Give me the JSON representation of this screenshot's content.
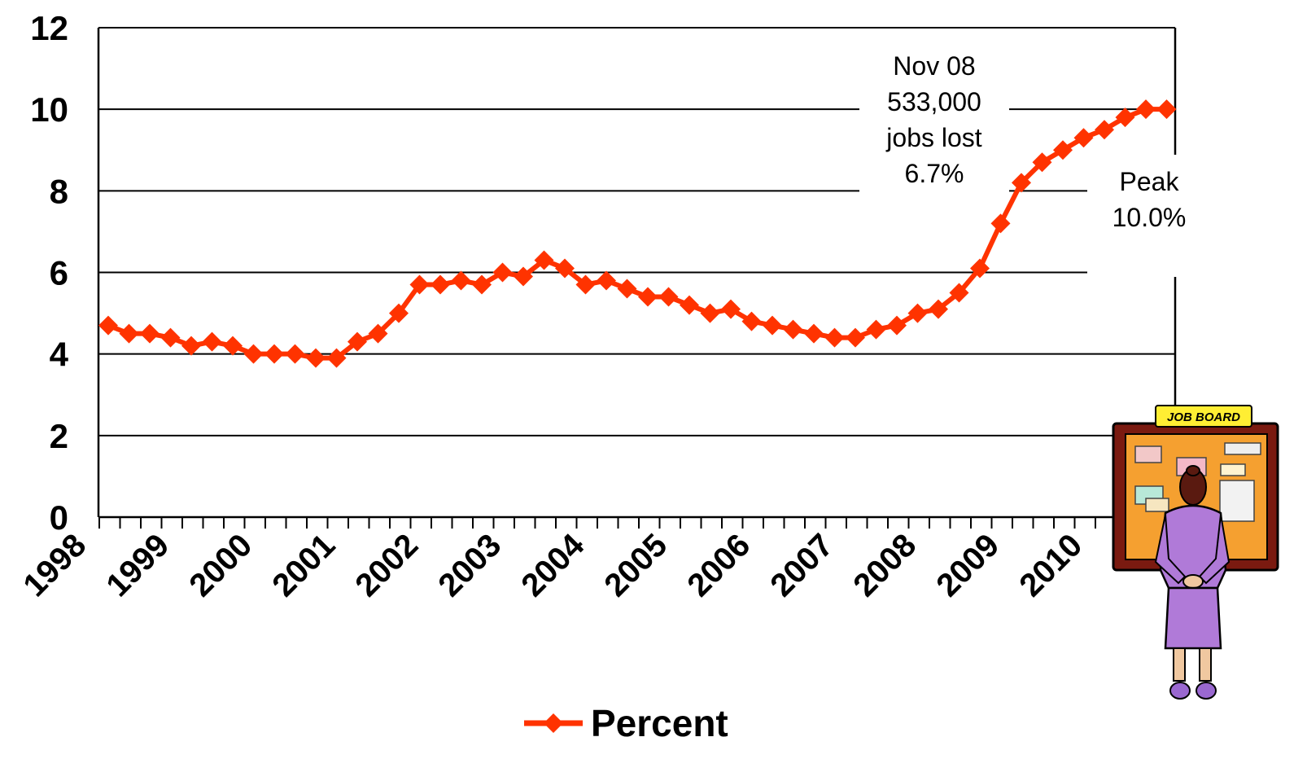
{
  "chart_data": {
    "type": "line",
    "title": "",
    "xlabel": "",
    "ylabel": "",
    "ylim": [
      0,
      12
    ],
    "yticks": [
      0,
      2,
      4,
      6,
      8,
      10,
      12
    ],
    "year_labels": [
      "1998",
      "1999",
      "2000",
      "2001",
      "2002",
      "2003",
      "2004",
      "2005",
      "2006",
      "2007",
      "2008",
      "2009",
      "2010"
    ],
    "grid": "horizontal",
    "legend_position": "bottom",
    "series": [
      {
        "name": "Percent",
        "color": "#ff3300",
        "marker": "diamond",
        "values": [
          4.7,
          4.5,
          4.5,
          4.4,
          4.2,
          4.3,
          4.2,
          4.0,
          4.0,
          4.0,
          3.9,
          3.9,
          4.3,
          4.5,
          5.0,
          5.7,
          5.7,
          5.8,
          5.7,
          6.0,
          5.9,
          6.3,
          6.1,
          5.7,
          5.8,
          5.6,
          5.4,
          5.4,
          5.2,
          5.0,
          5.1,
          4.8,
          4.7,
          4.6,
          4.5,
          4.4,
          4.4,
          4.6,
          4.7,
          5.0,
          5.1,
          5.5,
          6.1,
          7.2,
          8.2,
          8.7,
          9.0,
          9.3,
          9.5,
          9.8,
          10.0,
          10.0
        ]
      }
    ],
    "annotations": [
      {
        "lines": [
          "Nov 08",
          "533,000",
          "jobs lost",
          "6.7%"
        ]
      },
      {
        "lines": [
          "Peak",
          "10.0%"
        ]
      }
    ]
  },
  "clipart": {
    "sign_text": "JOB BOARD",
    "colors": {
      "board_frame": "#7a1a10",
      "board_cork": "#f5a030",
      "sign": "#ffee33",
      "dress": "#b07ad8"
    }
  }
}
